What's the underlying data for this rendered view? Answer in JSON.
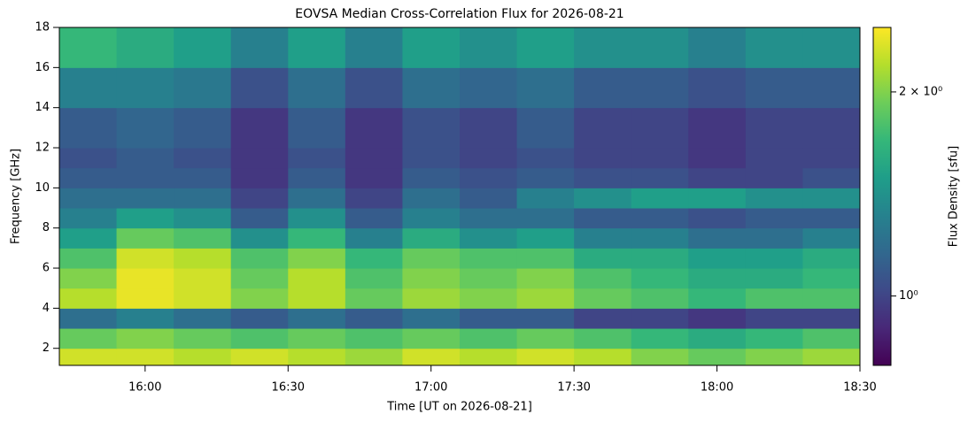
{
  "chart_data": {
    "type": "heatmap",
    "title": "EOVSA Median Cross-Correlation Flux for 2026-08-21",
    "xlabel": "Time [UT on 2026-08-21]",
    "ylabel": "Frequency [GHz]",
    "colormap": "viridis",
    "xlim": [
      942,
      1110
    ],
    "xticks": [
      {
        "value": 960,
        "label": "16:00"
      },
      {
        "value": 990,
        "label": "16:30"
      },
      {
        "value": 1020,
        "label": "17:00"
      },
      {
        "value": 1050,
        "label": "17:30"
      },
      {
        "value": 1080,
        "label": "18:00"
      },
      {
        "value": 1110,
        "label": "18:30"
      }
    ],
    "ylim": [
      1.15,
      18
    ],
    "yticks": [
      2,
      4,
      6,
      8,
      10,
      12,
      14,
      16,
      18
    ],
    "x_edges": [
      942,
      954,
      966,
      978,
      990,
      1002,
      1014,
      1026,
      1038,
      1050,
      1062,
      1074,
      1086,
      1098,
      1110
    ],
    "y_edges": [
      1.15,
      2,
      3,
      4,
      5,
      6,
      7,
      8,
      9,
      10,
      11,
      12,
      14,
      16,
      18
    ],
    "z": [
      [
        2.3,
        2.3,
        2.2,
        2.3,
        2.2,
        2.1,
        2.3,
        2.2,
        2.3,
        2.2,
        2.0,
        1.9,
        2.0,
        2.1
      ],
      [
        1.9,
        2.0,
        1.9,
        1.8,
        1.9,
        1.8,
        1.9,
        1.8,
        1.9,
        1.8,
        1.7,
        1.6,
        1.7,
        1.8
      ],
      [
        1.2,
        1.3,
        1.2,
        1.1,
        1.2,
        1.1,
        1.2,
        1.1,
        1.1,
        1.0,
        1.0,
        0.95,
        1.0,
        1.0
      ],
      [
        2.2,
        2.4,
        2.3,
        2.0,
        2.2,
        1.9,
        2.1,
        2.0,
        2.1,
        1.9,
        1.8,
        1.7,
        1.8,
        1.8
      ],
      [
        2.0,
        2.4,
        2.3,
        1.9,
        2.2,
        1.8,
        2.0,
        1.9,
        2.0,
        1.8,
        1.7,
        1.6,
        1.6,
        1.7
      ],
      [
        1.8,
        2.3,
        2.2,
        1.8,
        2.0,
        1.7,
        1.9,
        1.8,
        1.8,
        1.6,
        1.6,
        1.5,
        1.5,
        1.6
      ],
      [
        1.5,
        1.9,
        1.8,
        1.4,
        1.7,
        1.3,
        1.6,
        1.4,
        1.5,
        1.3,
        1.3,
        1.2,
        1.2,
        1.3
      ],
      [
        1.3,
        1.5,
        1.4,
        1.1,
        1.4,
        1.1,
        1.3,
        1.2,
        1.2,
        1.1,
        1.1,
        1.05,
        1.1,
        1.1
      ],
      [
        1.2,
        1.2,
        1.2,
        1.0,
        1.2,
        1.0,
        1.2,
        1.1,
        1.3,
        1.4,
        1.5,
        1.5,
        1.4,
        1.4
      ],
      [
        1.1,
        1.1,
        1.1,
        0.95,
        1.1,
        0.95,
        1.1,
        1.05,
        1.1,
        1.05,
        1.05,
        1.0,
        1.0,
        1.05
      ],
      [
        1.05,
        1.1,
        1.05,
        0.95,
        1.05,
        0.95,
        1.05,
        1.0,
        1.05,
        1.0,
        1.0,
        0.95,
        1.0,
        1.0
      ],
      [
        1.1,
        1.15,
        1.1,
        0.95,
        1.1,
        0.95,
        1.05,
        1.0,
        1.1,
        1.0,
        1.0,
        0.95,
        1.0,
        1.0
      ],
      [
        1.3,
        1.3,
        1.25,
        1.05,
        1.2,
        1.05,
        1.2,
        1.15,
        1.2,
        1.1,
        1.1,
        1.05,
        1.1,
        1.1
      ],
      [
        1.7,
        1.6,
        1.5,
        1.3,
        1.5,
        1.3,
        1.5,
        1.4,
        1.5,
        1.4,
        1.4,
        1.3,
        1.4,
        1.4
      ]
    ],
    "colorbar": {
      "label": "Flux Density [sfu]",
      "scale": "log",
      "lim": [
        0.79,
        2.49
      ],
      "ticks": [
        {
          "value": 1,
          "label": "10⁰"
        },
        {
          "value": 2,
          "label": "2 × 10⁰"
        }
      ]
    }
  }
}
